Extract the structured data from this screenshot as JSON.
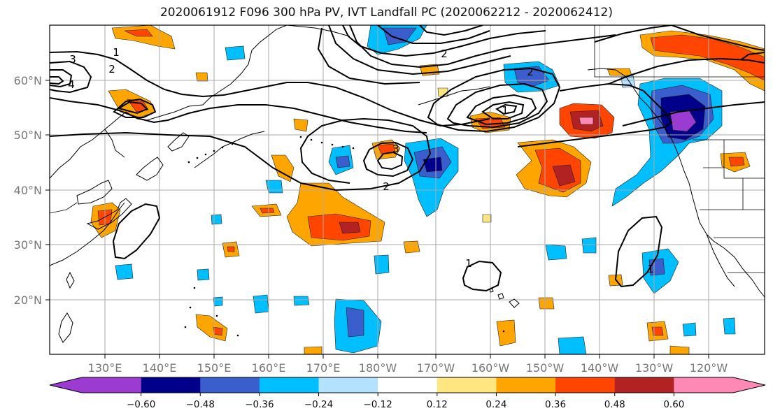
{
  "title": "2020061912 F096 300 hPa PV, IVT Landfall PC (2020062212 - 2020062412)",
  "lon_labels": [
    "130°E",
    "140°E",
    "150°E",
    "160°E",
    "170°E",
    "180°W",
    "170°W",
    "160°W",
    "150°W",
    "140°W",
    "130°W",
    "120°W"
  ],
  "lat_labels": [
    "60°N",
    "50°N",
    "40°N",
    "30°N",
    "20°N"
  ],
  "colorbar": {
    "tick_labels": [
      "−0.60",
      "−0.48",
      "−0.36",
      "−0.24",
      "−0.12",
      "0.12",
      "0.24",
      "0.36",
      "0.48",
      "0.60"
    ],
    "colors": [
      "#9b3bd1",
      "#00008b",
      "#3a5fcd",
      "#00bfff",
      "#b2e2ff",
      "#ffffff",
      "#ffe680",
      "#ffa500",
      "#ff4500",
      "#b22222",
      "#ff89b5"
    ]
  },
  "contour_labels": [
    "3",
    "4",
    "1",
    "2",
    "2",
    "3",
    "2",
    "1",
    "1",
    "2",
    "1"
  ]
}
